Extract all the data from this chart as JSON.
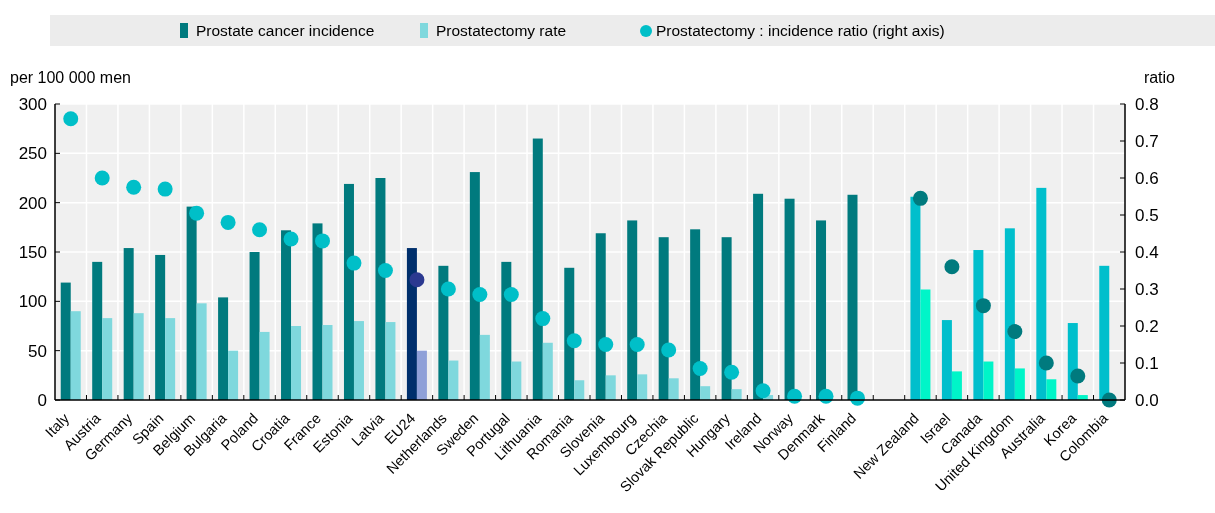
{
  "chart_data": {
    "type": "bar",
    "ylabel": "per 100 000 men",
    "y2label": "ratio",
    "legend": "top",
    "grid": true,
    "categories": [
      "Italy",
      "Austria",
      "Germany",
      "Spain",
      "Belgium",
      "Bulgaria",
      "Poland",
      "Croatia",
      "France",
      "Estonia",
      "Latvia",
      "EU24",
      "Netherlands",
      "Sweden",
      "Portugal",
      "Lithuania",
      "Romania",
      "Slovenia",
      "Luxembourg",
      "Czechia",
      "Slovak Republic",
      "Hungary",
      "Ireland",
      "Norway",
      "Denmark",
      "Finland",
      null,
      "New Zealand",
      "Israel",
      "Canada",
      "United Kingdom",
      "Australia",
      "Korea",
      "Colombia"
    ],
    "series": [
      {
        "name": "Prostate cancer incidence",
        "color": "#007a7e",
        "colors": [
          "#007a7e",
          "#007a7e",
          "#007a7e",
          "#007a7e",
          "#007a7e",
          "#007a7e",
          "#007a7e",
          "#007a7e",
          "#007a7e",
          "#007a7e",
          "#007a7e",
          "#002f6c",
          "#007a7e",
          "#007a7e",
          "#007a7e",
          "#007a7e",
          "#007a7e",
          "#007a7e",
          "#007a7e",
          "#007a7e",
          "#007a7e",
          "#007a7e",
          "#007a7e",
          "#007a7e",
          "#007a7e",
          "#007a7e",
          null,
          "#00bfcc",
          "#00bfcc",
          "#00bfcc",
          "#00bfcc",
          "#00bfcc",
          "#00bfcc",
          "#00bfcc"
        ],
        "values": [
          119,
          140,
          154,
          147,
          196,
          104,
          150,
          172,
          179,
          219,
          225,
          154,
          136,
          231,
          140,
          265,
          134,
          169,
          182,
          165,
          173,
          165,
          209,
          204,
          182,
          208,
          null,
          206,
          81,
          152,
          174,
          215,
          78,
          136
        ]
      },
      {
        "name": "Prostatectomy rate",
        "color": "#7fd8dd",
        "colors": [
          "#7fd8dd",
          "#7fd8dd",
          "#7fd8dd",
          "#7fd8dd",
          "#7fd8dd",
          "#7fd8dd",
          "#7fd8dd",
          "#7fd8dd",
          "#7fd8dd",
          "#7fd8dd",
          "#7fd8dd",
          "#8fa0d8",
          "#7fd8dd",
          "#7fd8dd",
          "#7fd8dd",
          "#7fd8dd",
          "#7fd8dd",
          "#7fd8dd",
          "#7fd8dd",
          "#7fd8dd",
          "#7fd8dd",
          "#7fd8dd",
          "#7fd8dd",
          "#7fd8dd",
          "#7fd8dd",
          "#7fd8dd",
          null,
          "#00f5c8",
          "#00f5c8",
          "#00f5c8",
          "#00f5c8",
          "#00f5c8",
          "#00f5c8",
          "#00f5c8"
        ],
        "values": [
          90,
          83,
          88,
          83,
          98,
          50,
          69,
          75,
          76,
          80,
          79,
          50,
          40,
          66,
          39,
          58,
          20,
          25,
          26,
          22,
          14,
          11,
          5,
          null,
          null,
          null,
          null,
          112,
          29,
          39,
          32,
          21,
          5,
          0
        ]
      },
      {
        "name": "Prostatectomy : incidence ratio (right axis)",
        "type": "scatter",
        "axis": "y2",
        "marker": "circle",
        "color": "#00bfc8",
        "colors": [
          "#00bfc8",
          "#00bfc8",
          "#00bfc8",
          "#00bfc8",
          "#00bfc8",
          "#00bfc8",
          "#00bfc8",
          "#00bfc8",
          "#00bfc8",
          "#00bfc8",
          "#00bfc8",
          "#2b3990",
          "#00bfc8",
          "#00bfc8",
          "#00bfc8",
          "#00bfc8",
          "#00bfc8",
          "#00bfc8",
          "#00bfc8",
          "#00bfc8",
          "#00bfc8",
          "#00bfc8",
          "#00bfc8",
          "#00bfc8",
          "#00bfc8",
          "#00bfc8",
          null,
          "#007a7e",
          "#007a7e",
          "#007a7e",
          "#007a7e",
          "#007a7e",
          "#007a7e",
          "#007a7e"
        ],
        "values": [
          0.76,
          0.6,
          0.575,
          0.57,
          0.505,
          0.48,
          0.46,
          0.435,
          0.43,
          0.37,
          0.35,
          0.325,
          0.3,
          0.285,
          0.285,
          0.22,
          0.16,
          0.15,
          0.15,
          0.135,
          0.085,
          0.075,
          0.025,
          0.01,
          0.01,
          0.005,
          null,
          0.545,
          0.36,
          0.255,
          0.185,
          0.1,
          0.065,
          0
        ]
      }
    ],
    "ylim": [
      0,
      300
    ],
    "yticks": [
      0,
      50,
      100,
      150,
      200,
      250,
      300
    ],
    "y2lim": [
      0,
      0.8
    ],
    "y2ticks": [
      {
        "value": 0,
        "label": "0.0"
      },
      0.1,
      0.2,
      0.3,
      0.4,
      0.5,
      0.6,
      0.7,
      0.8
    ]
  }
}
